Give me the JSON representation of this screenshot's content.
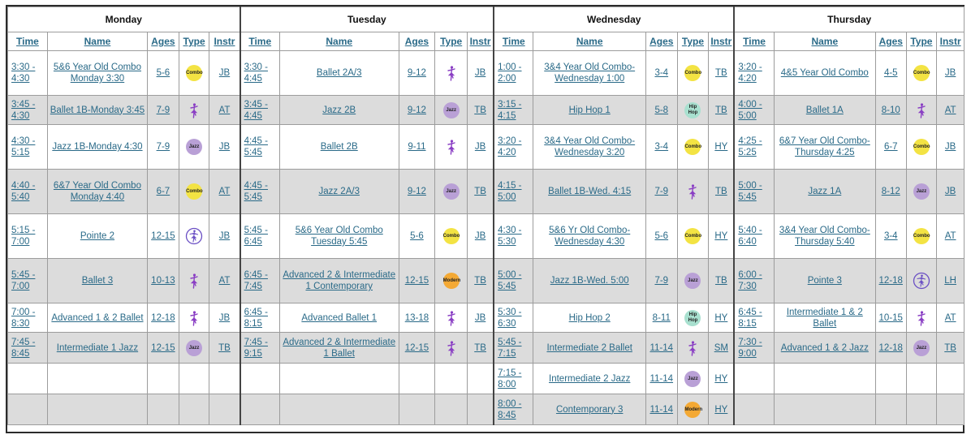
{
  "days": [
    "Monday",
    "Tuesday",
    "Wednesday",
    "Thursday"
  ],
  "columns": [
    "Time",
    "Name",
    "Ages",
    "Type",
    "Instr"
  ],
  "type_styles": {
    "combo": {
      "label": "Combo",
      "color": "#f3e343"
    },
    "jazz": {
      "label": "Jazz",
      "color": "#b9a0d6"
    },
    "hiphop": {
      "label": "Hip Hop",
      "color": "#a8e0cf"
    },
    "modern": {
      "label": "Modern",
      "color": "#f4a934"
    },
    "ballet": {
      "icon": "ballerina-icon",
      "color": "#8a3fc4"
    },
    "pointe": {
      "icon": "pointe-shoe-icon",
      "color": "#6a4fc4"
    }
  },
  "rows": [
    {
      "shade": false,
      "cells": [
        {
          "time": "3:30 - 4:30",
          "name": "5&6 Year Old Combo Monday 3:30",
          "ages": "5-6",
          "type": "combo",
          "instr": "JB"
        },
        {
          "time": "3:30 - 4:45",
          "name": "Ballet 2A/3",
          "ages": "9-12",
          "type": "ballet",
          "instr": "JB"
        },
        {
          "time": "1:00 - 2:00",
          "name": "3&4 Year Old Combo-Wednesday 1:00",
          "ages": "3-4",
          "type": "combo",
          "instr": "TB"
        },
        {
          "time": "3:20 - 4:20",
          "name": "4&5 Year Old Combo",
          "ages": "4-5",
          "type": "combo",
          "instr": "JB"
        }
      ]
    },
    {
      "shade": true,
      "cells": [
        {
          "time": "3:45 - 4:30",
          "name": "Ballet 1B-Monday 3:45",
          "ages": "7-9",
          "type": "ballet",
          "instr": "AT"
        },
        {
          "time": "3:45 - 4:45",
          "name": "Jazz 2B",
          "ages": "9-12",
          "type": "jazz",
          "instr": "TB"
        },
        {
          "time": "3:15 - 4:15",
          "name": "Hip Hop 1",
          "ages": "5-8",
          "type": "hiphop",
          "instr": "TB"
        },
        {
          "time": "4:00 - 5:00",
          "name": "Ballet 1A",
          "ages": "8-10",
          "type": "ballet",
          "instr": "AT"
        }
      ]
    },
    {
      "shade": false,
      "cells": [
        {
          "time": "4:30 - 5:15",
          "name": "Jazz 1B-Monday 4:30",
          "ages": "7-9",
          "type": "jazz",
          "instr": "JB"
        },
        {
          "time": "4:45 - 5:45",
          "name": "Ballet 2B",
          "ages": "9-11",
          "type": "ballet",
          "instr": "JB"
        },
        {
          "time": "3:20 - 4:20",
          "name": "3&4 Year Old Combo-Wednesday 3:20",
          "ages": "3-4",
          "type": "combo",
          "instr": "HY"
        },
        {
          "time": "4:25 - 5:25",
          "name": "6&7 Year Old Combo-Thursday 4:25",
          "ages": "6-7",
          "type": "combo",
          "instr": "JB"
        }
      ]
    },
    {
      "shade": true,
      "cells": [
        {
          "time": "4:40 - 5:40",
          "name": "6&7 Year Old Combo Monday 4:40",
          "ages": "6-7",
          "type": "combo",
          "instr": "AT"
        },
        {
          "time": "4:45 - 5:45",
          "name": "Jazz 2A/3",
          "ages": "9-12",
          "type": "jazz",
          "instr": "TB"
        },
        {
          "time": "4:15 - 5:00",
          "name": "Ballet 1B-Wed. 4:15",
          "ages": "7-9",
          "type": "ballet",
          "instr": "TB"
        },
        {
          "time": "5:00 - 5:45",
          "name": "Jazz 1A",
          "ages": "8-12",
          "type": "jazz",
          "instr": "JB"
        }
      ]
    },
    {
      "shade": false,
      "cells": [
        {
          "time": "5:15 - 7:00",
          "name": "Pointe 2",
          "ages": "12-15",
          "type": "pointe",
          "instr": "JB"
        },
        {
          "time": "5:45 - 6:45",
          "name": "5&6 Year Old Combo Tuesday 5:45",
          "ages": "5-6",
          "type": "combo",
          "instr": "JB"
        },
        {
          "time": "4:30 - 5:30",
          "name": "5&6 Yr Old Combo-Wednesday 4:30",
          "ages": "5-6",
          "type": "combo",
          "instr": "HY"
        },
        {
          "time": "5:40 - 6:40",
          "name": "3&4 Year Old Combo-Thursday 5:40",
          "ages": "3-4",
          "type": "combo",
          "instr": "AT"
        }
      ]
    },
    {
      "shade": true,
      "cells": [
        {
          "time": "5:45 - 7:00",
          "name": "Ballet 3",
          "ages": "10-13",
          "type": "ballet",
          "instr": "AT"
        },
        {
          "time": "6:45 - 7:45",
          "name": "Advanced 2 & Intermediate 1 Contemporary",
          "ages": "12-15",
          "type": "modern",
          "instr": "TB"
        },
        {
          "time": "5:00 - 5:45",
          "name": "Jazz 1B-Wed. 5:00",
          "ages": "7-9",
          "type": "jazz",
          "instr": "TB"
        },
        {
          "time": "6:00 - 7:30",
          "name": "Pointe 3",
          "ages": "12-18",
          "type": "pointe",
          "instr": "LH"
        }
      ]
    },
    {
      "shade": false,
      "cells": [
        {
          "time": "7:00 - 8:30",
          "name": "Advanced 1 & 2 Ballet",
          "ages": "12-18",
          "type": "ballet",
          "instr": "JB"
        },
        {
          "time": "6:45 - 8:15",
          "name": "Advanced Ballet 1",
          "ages": "13-18",
          "type": "ballet",
          "instr": "JB"
        },
        {
          "time": "5:30 - 6:30",
          "name": "Hip Hop 2",
          "ages": "8-11",
          "type": "hiphop",
          "instr": "HY"
        },
        {
          "time": "6:45 - 8:15",
          "name": "Intermediate 1 & 2 Ballet",
          "ages": "10-15",
          "type": "ballet",
          "instr": "AT"
        }
      ]
    },
    {
      "shade": true,
      "cells": [
        {
          "time": "7:45 - 8:45",
          "name": "Intermediate 1 Jazz",
          "ages": "12-15",
          "type": "jazz",
          "instr": "TB"
        },
        {
          "time": "7:45 - 9:15",
          "name": "Advanced 2 & Intermediate 1 Ballet",
          "ages": "12-15",
          "type": "ballet",
          "instr": "TB"
        },
        {
          "time": "5:45 - 7:15",
          "name": "Intermediate 2 Ballet",
          "ages": "11-14",
          "type": "ballet",
          "instr": "SM"
        },
        {
          "time": "7:30 - 9:00",
          "name": "Advanced 1 & 2 Jazz",
          "ages": "12-18",
          "type": "jazz",
          "instr": "TB"
        }
      ]
    },
    {
      "shade": false,
      "cells": [
        null,
        null,
        {
          "time": "7:15 - 8:00",
          "name": "Intermediate 2 Jazz",
          "ages": "11-14",
          "type": "jazz",
          "instr": "HY"
        },
        null
      ]
    },
    {
      "shade": true,
      "cells": [
        null,
        null,
        {
          "time": "8:00 - 8:45",
          "name": "Contemporary 3",
          "ages": "11-14",
          "type": "modern",
          "instr": "HY"
        },
        null
      ]
    }
  ]
}
